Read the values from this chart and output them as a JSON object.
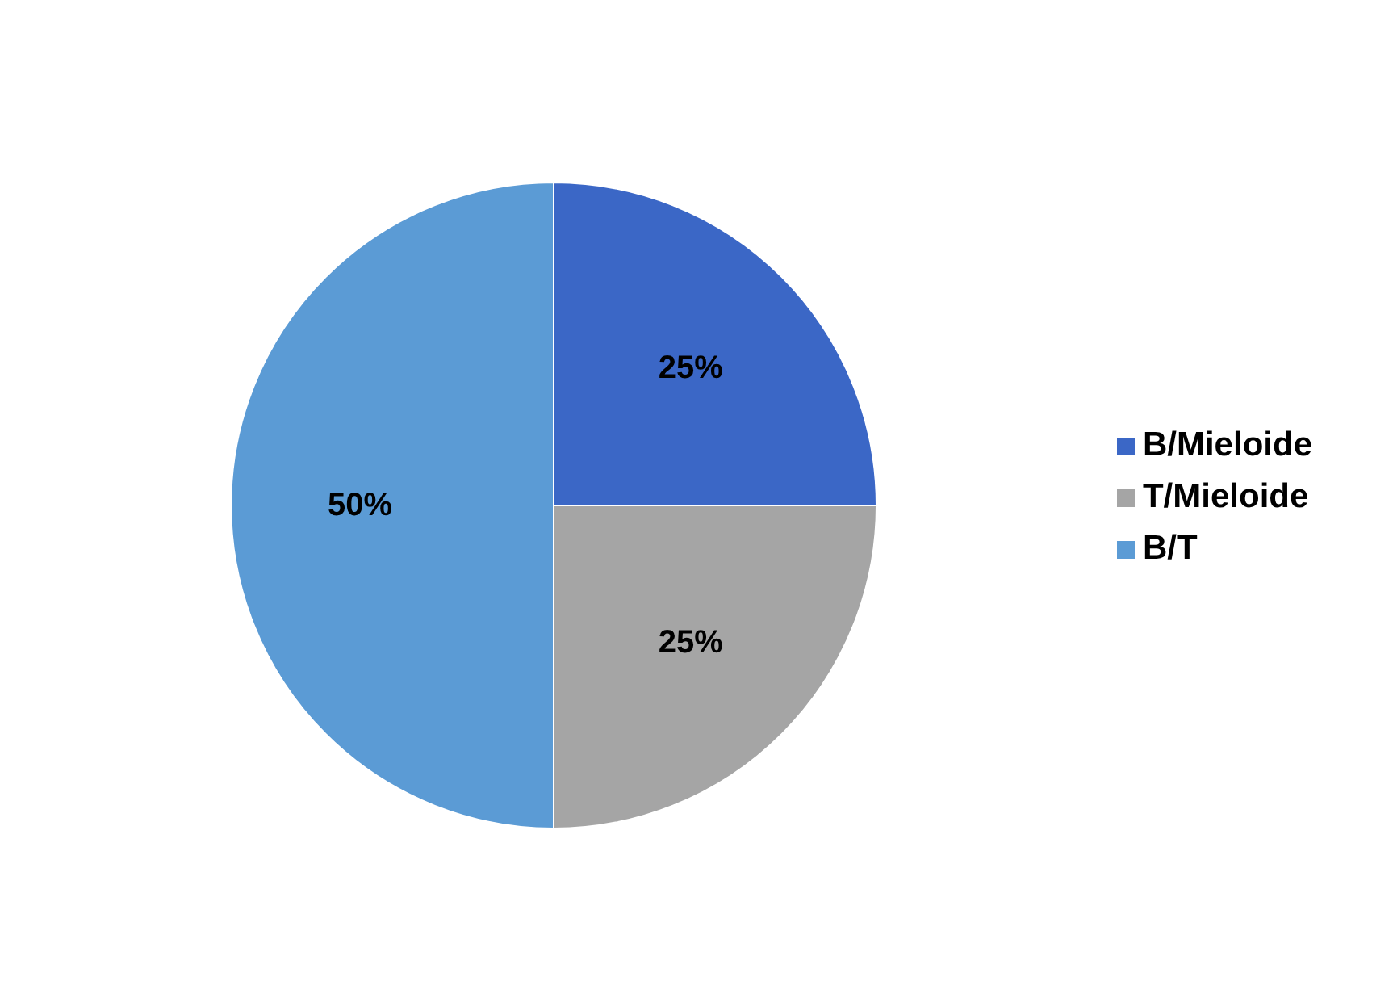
{
  "chart_data": {
    "type": "pie",
    "categories": [
      "B/Mieloide",
      "T/Mieloide",
      "B/T"
    ],
    "values": [
      25,
      25,
      50
    ],
    "value_labels": [
      "25%",
      "25%",
      "50%"
    ],
    "colors": [
      "#3b67c6",
      "#a5a5a5",
      "#5b9bd5"
    ],
    "legend": "right"
  }
}
